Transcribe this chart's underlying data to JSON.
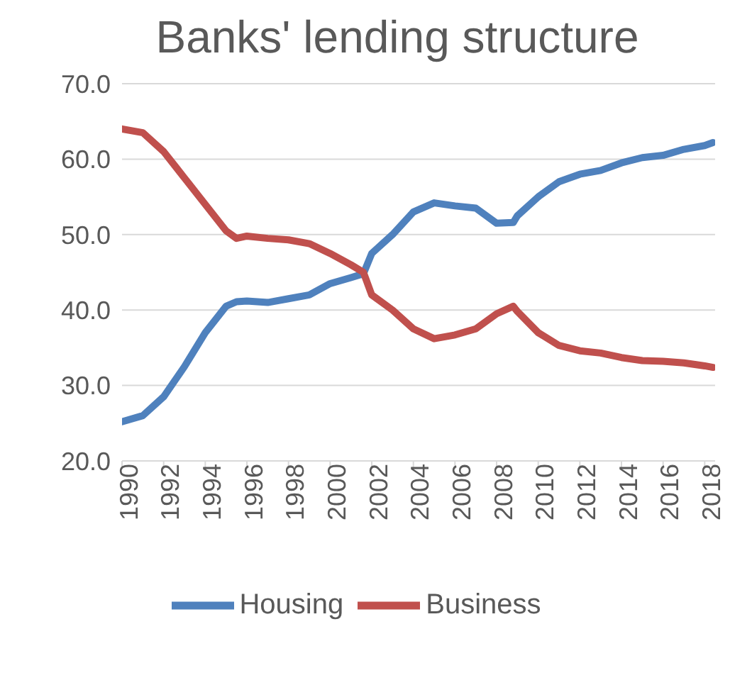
{
  "chart_data": {
    "type": "line",
    "title": "Banks' lending structure",
    "x": [
      1990,
      1991,
      1992,
      1993,
      1994,
      1995,
      1995.5,
      1996,
      1997,
      1998,
      1999,
      2000,
      2001,
      2001.6,
      2002,
      2003,
      2004,
      2005,
      2006,
      2007,
      2008,
      2008.8,
      2009,
      2010,
      2011,
      2012,
      2013,
      2014,
      2015,
      2016,
      2017,
      2018,
      2018.4
    ],
    "series": [
      {
        "name": "Housing",
        "color": "#4f81bd",
        "values": [
          25.2,
          26,
          28.5,
          32.5,
          37,
          40.5,
          41.1,
          41.2,
          41,
          41.5,
          42,
          43.5,
          44.3,
          44.8,
          47.5,
          50,
          53,
          54.2,
          53.8,
          53.5,
          51.5,
          51.6,
          52.5,
          55,
          57,
          58,
          58.5,
          59.5,
          60.2,
          60.5,
          61.3,
          61.8,
          62.2
        ]
      },
      {
        "name": "Business",
        "color": "#c0504d",
        "values": [
          64,
          63.5,
          61,
          57.5,
          54,
          50.5,
          49.5,
          49.8,
          49.5,
          49.3,
          48.8,
          47.5,
          46,
          45,
          42,
          40,
          37.5,
          36.2,
          36.7,
          37.5,
          39.5,
          40.5,
          39.8,
          37,
          35.3,
          34.6,
          34.3,
          33.7,
          33.3,
          33.2,
          33,
          32.6,
          32.4
        ]
      }
    ],
    "xlim": [
      1990,
      2018.5
    ],
    "xticks": [
      1990,
      1992,
      1994,
      1996,
      1998,
      2000,
      2002,
      2004,
      2006,
      2008,
      2010,
      2012,
      2014,
      2016,
      2018
    ],
    "ylim": [
      20,
      70
    ],
    "yticks": [
      {
        "value": 20,
        "label": "20.0"
      },
      {
        "value": 30,
        "label": "30.0"
      },
      {
        "value": 40,
        "label": "40.0"
      },
      {
        "value": 50,
        "label": "50.0"
      },
      {
        "value": 60,
        "label": "60.0"
      },
      {
        "value": 70,
        "label": "70.0"
      }
    ],
    "grid": "y",
    "legend": "bottom",
    "marker": "none",
    "line_style": "solid"
  }
}
